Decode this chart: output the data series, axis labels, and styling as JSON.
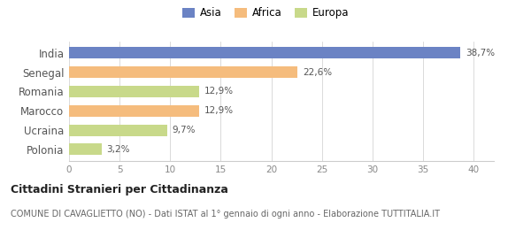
{
  "categories": [
    "India",
    "Senegal",
    "Romania",
    "Marocco",
    "Ucraina",
    "Polonia"
  ],
  "values": [
    38.7,
    22.6,
    12.9,
    12.9,
    9.7,
    3.2
  ],
  "colors": [
    "#6b83c4",
    "#f5bc7d",
    "#c8d98a",
    "#f5bc7d",
    "#c8d98a",
    "#c8d98a"
  ],
  "labels": [
    "38,7%",
    "22,6%",
    "12,9%",
    "12,9%",
    "9,7%",
    "3,2%"
  ],
  "legend": [
    {
      "label": "Asia",
      "color": "#6b83c4"
    },
    {
      "label": "Africa",
      "color": "#f5bc7d"
    },
    {
      "label": "Europa",
      "color": "#c8d98a"
    }
  ],
  "xlim": [
    0,
    42
  ],
  "xticks": [
    0,
    5,
    10,
    15,
    20,
    25,
    30,
    35,
    40
  ],
  "title_bold": "Cittadini Stranieri per Cittadinanza",
  "subtitle": "COMUNE DI CAVAGLIETTO (NO) - Dati ISTAT al 1° gennaio di ogni anno - Elaborazione TUTTITALIA.IT",
  "background_color": "#ffffff",
  "bar_height": 0.6,
  "grid_color": "#cccccc"
}
